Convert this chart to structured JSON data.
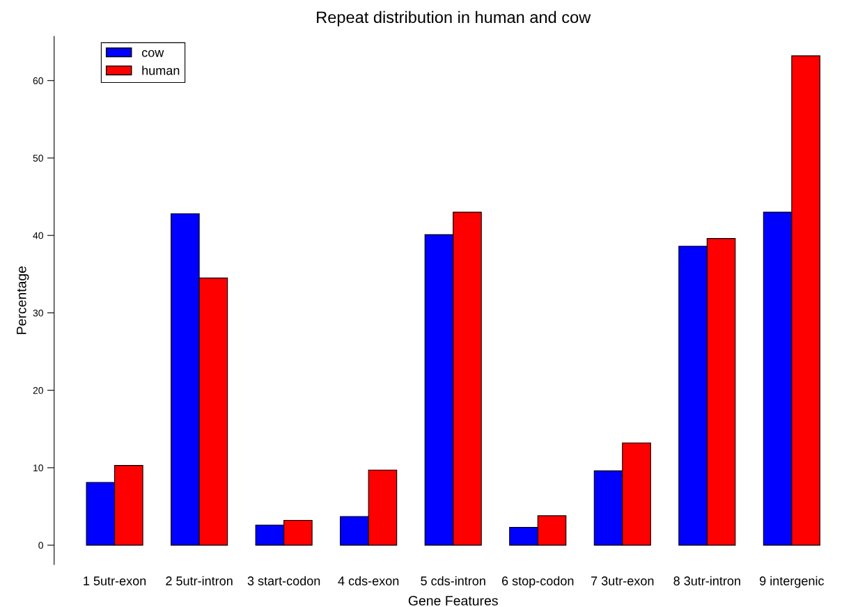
{
  "chart_data": {
    "type": "bar",
    "title": "Repeat distribution in human and cow",
    "xlabel": "Gene Features",
    "ylabel": "Percentage",
    "categories": [
      "1 5utr-exon",
      "2 5utr-intron",
      "3 start-codon",
      "4 cds-exon",
      "5 cds-intron",
      "6 stop-codon",
      "7 3utr-exon",
      "8 3utr-intron",
      "9 intergenic"
    ],
    "series": [
      {
        "name": "cow",
        "color": "#0000ff",
        "values": [
          8.1,
          42.8,
          2.6,
          3.7,
          40.1,
          2.3,
          9.6,
          38.6,
          43.0
        ]
      },
      {
        "name": "human",
        "color": "#ff0000",
        "values": [
          10.3,
          34.5,
          3.2,
          9.7,
          43.0,
          3.8,
          13.2,
          39.6,
          63.2
        ]
      }
    ],
    "ylim": [
      -2.5,
      65.7
    ],
    "yticks": [
      0,
      10,
      20,
      30,
      40,
      50,
      60
    ],
    "grid": false,
    "legend": "top left"
  }
}
